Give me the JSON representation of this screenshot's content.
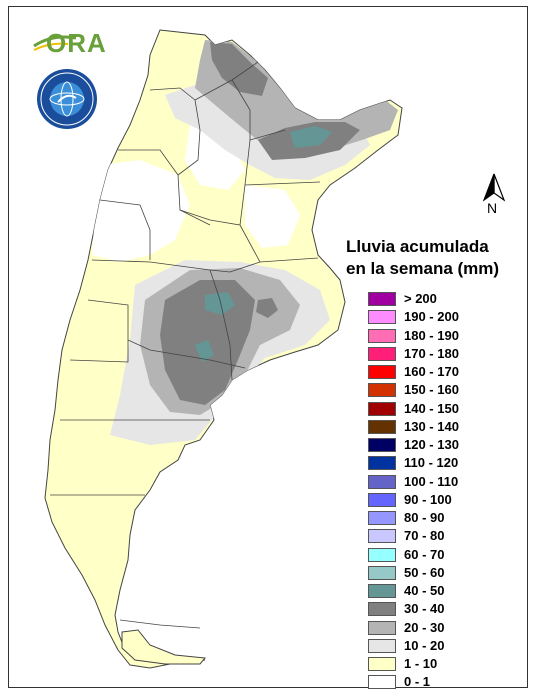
{
  "title_line1": "Lluvia acumulada",
  "title_line2": "en la semana (mm)",
  "north_label": "N",
  "logo_text": "ORA",
  "legend": [
    {
      "label": "> 200",
      "color": "#a000a0"
    },
    {
      "label": "190 - 200",
      "color": "#ff8cff"
    },
    {
      "label": "180 - 190",
      "color": "#ff6eb4"
    },
    {
      "label": "170 - 180",
      "color": "#ff1e78"
    },
    {
      "label": "160 - 170",
      "color": "#ff0000"
    },
    {
      "label": "150 - 160",
      "color": "#d23200"
    },
    {
      "label": "140 - 150",
      "color": "#a00000"
    },
    {
      "label": "130 - 140",
      "color": "#643200"
    },
    {
      "label": "120 - 130",
      "color": "#000064"
    },
    {
      "label": "110 - 120",
      "color": "#0032a0"
    },
    {
      "label": "100 - 110",
      "color": "#6464c8"
    },
    {
      "label": "90 - 100",
      "color": "#6464ff"
    },
    {
      "label": "80 - 90",
      "color": "#9696ff"
    },
    {
      "label": "70 - 80",
      "color": "#c8c8ff"
    },
    {
      "label": "60 - 70",
      "color": "#96ffff"
    },
    {
      "label": "50 - 60",
      "color": "#96c8c8"
    },
    {
      "label": "40 - 50",
      "color": "#649696"
    },
    {
      "label": "30 - 40",
      "color": "#808080"
    },
    {
      "label": "20 - 30",
      "color": "#b4b4b4"
    },
    {
      "label": "10 - 20",
      "color": "#e6e6e6"
    },
    {
      "label": "1 - 10",
      "color": "#ffffc8"
    },
    {
      "label": "0 - 1",
      "color": "#ffffff"
    }
  ]
}
